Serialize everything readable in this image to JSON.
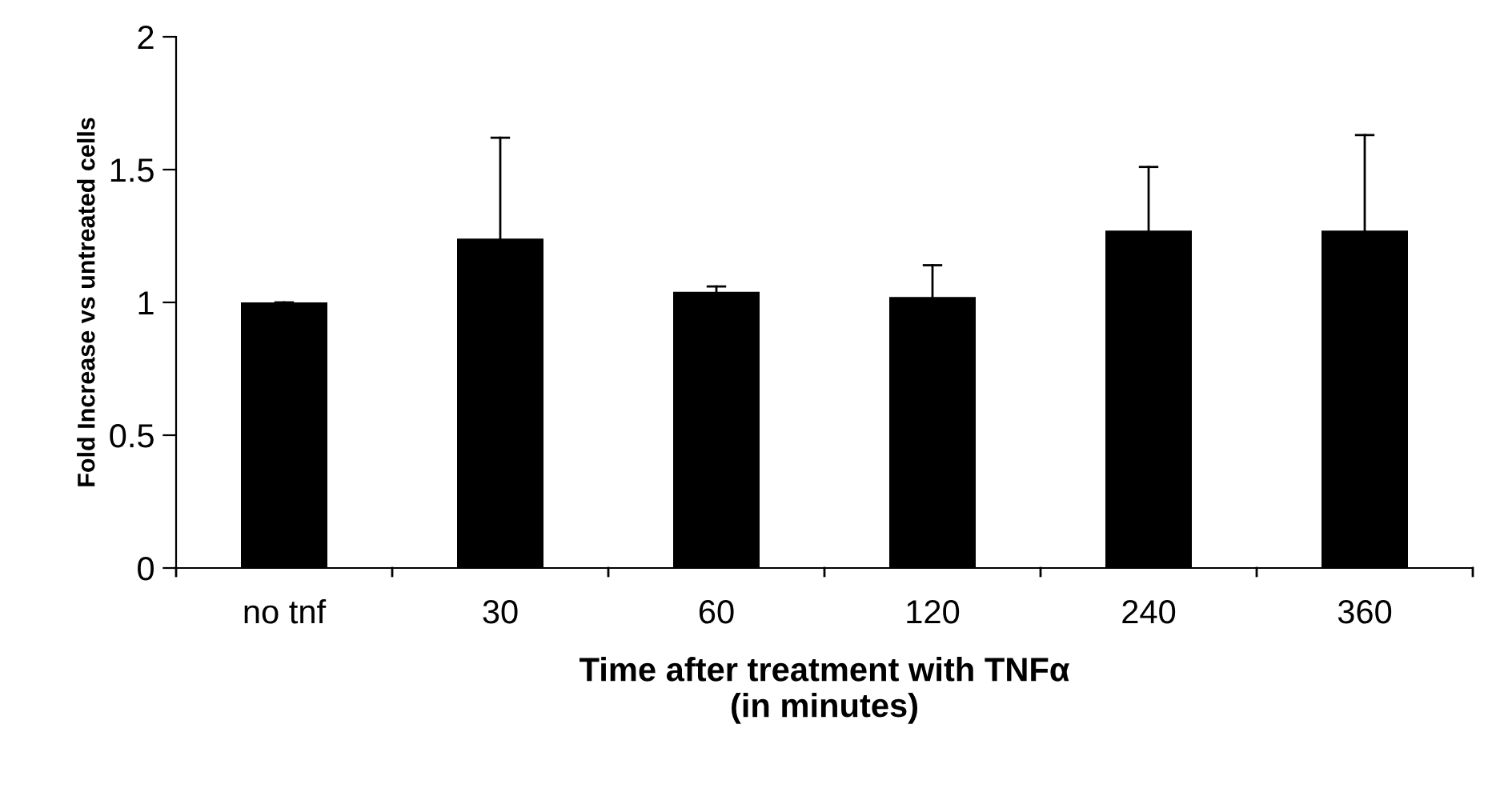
{
  "chart_data": {
    "type": "bar",
    "xlabel": "Time after treatment with TNFα\n(in minutes)",
    "ylabel": "Fold Increase vs untreated cells",
    "categories": [
      "no tnf",
      "30",
      "60",
      "120",
      "240",
      "360"
    ],
    "values": [
      1.0,
      1.24,
      1.04,
      1.02,
      1.27,
      1.27
    ],
    "errors": [
      [
        1.0,
        1.0
      ],
      [
        1.24,
        1.62
      ],
      [
        1.04,
        1.06
      ],
      [
        1.02,
        1.14
      ],
      [
        1.27,
        1.51
      ],
      [
        1.27,
        1.63
      ]
    ],
    "color": "#000000",
    "ylim": [
      0,
      2
    ],
    "yticks": [
      0,
      0.5,
      1,
      1.5,
      2
    ],
    "grid": false,
    "legend": false
  }
}
